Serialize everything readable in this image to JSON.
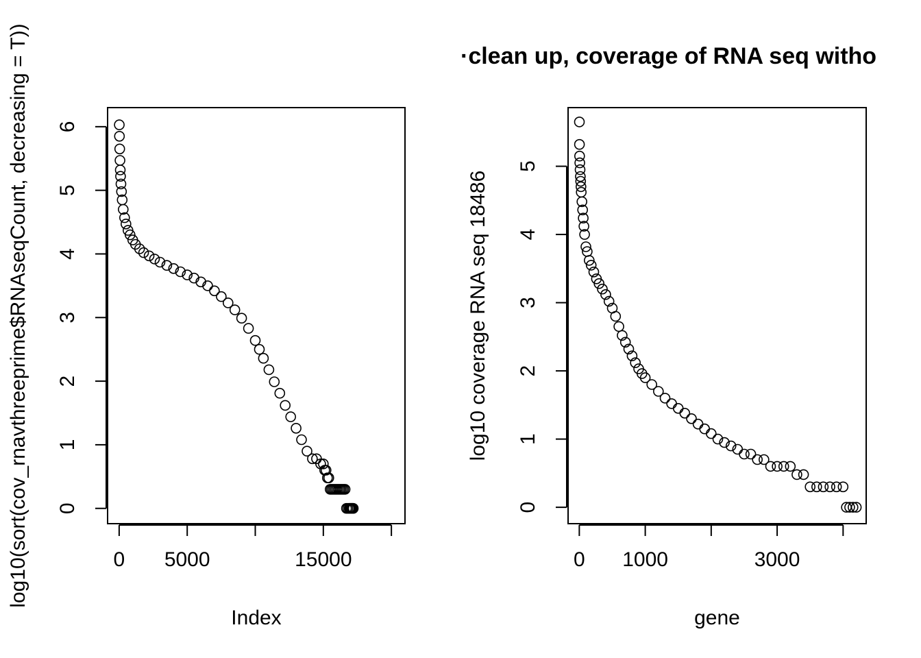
{
  "figure": {
    "title": "·clean up, coverage of RNA seq witho"
  },
  "chart_data": [
    {
      "type": "scatter",
      "title": "",
      "xlabel": "Index",
      "ylabel": "log10(sort(cov_rnavthreeprime$RNAseqCount, decreasing = T))",
      "xlim": [
        -850,
        21000
      ],
      "ylim": [
        -0.24,
        6.3
      ],
      "x_ticks": [
        0,
        5000,
        10000,
        15000,
        20000
      ],
      "x_tick_labels": [
        "0",
        "5000",
        "",
        "15000",
        ""
      ],
      "y_ticks": [
        0,
        1,
        2,
        3,
        4,
        5,
        6
      ],
      "y_tick_labels": [
        "0",
        "1",
        "2",
        "3",
        "4",
        "5",
        "6"
      ],
      "series": [
        {
          "x": [
            10,
            20,
            40,
            60,
            80,
            100,
            130,
            170,
            220,
            300,
            400,
            500,
            650,
            800,
            1000,
            1200,
            1500,
            1800,
            2200,
            2600,
            3000,
            3500,
            4000,
            4500,
            5000,
            5500,
            6000,
            6500,
            7000,
            7500,
            8000,
            8500,
            9000,
            9500,
            10000,
            10300,
            10600,
            11000,
            11400,
            11800,
            12200,
            12600,
            13000,
            13400,
            13800,
            14200,
            14500,
            14800,
            15000,
            15100,
            15200,
            15300,
            15400,
            15500,
            15600,
            15700,
            15800,
            15900,
            16000,
            16100,
            16200,
            16300,
            16400,
            16500,
            16600,
            16700,
            16800,
            16900,
            16950,
            17000,
            17050,
            17100,
            17150,
            17200
          ],
          "y": [
            6.03,
            5.85,
            5.65,
            5.47,
            5.32,
            5.22,
            5.1,
            4.98,
            4.85,
            4.7,
            4.57,
            4.47,
            4.37,
            4.3,
            4.22,
            4.15,
            4.08,
            4.02,
            3.97,
            3.92,
            3.87,
            3.82,
            3.77,
            3.72,
            3.67,
            3.62,
            3.56,
            3.5,
            3.42,
            3.33,
            3.23,
            3.12,
            2.99,
            2.83,
            2.64,
            2.5,
            2.36,
            2.18,
            1.99,
            1.81,
            1.62,
            1.44,
            1.26,
            1.08,
            0.9,
            0.78,
            0.78,
            0.7,
            0.7,
            0.6,
            0.6,
            0.48,
            0.48,
            0.3,
            0.3,
            0.3,
            0.3,
            0.3,
            0.3,
            0.3,
            0.3,
            0.3,
            0.3,
            0.3,
            0.3,
            0,
            0,
            0,
            0,
            0,
            0,
            0,
            0,
            0
          ]
        }
      ]
    },
    {
      "type": "scatter",
      "title": "",
      "xlabel": "gene",
      "ylabel": "log10 coverage RNA seq 18486",
      "xlim": [
        -170,
        4350
      ],
      "ylim": [
        -0.24,
        5.86
      ],
      "x_ticks": [
        0,
        1000,
        2000,
        3000,
        4000
      ],
      "x_tick_labels": [
        "0",
        "1000",
        "",
        "3000",
        ""
      ],
      "y_ticks": [
        0,
        1,
        2,
        3,
        4,
        5
      ],
      "y_tick_labels": [
        "0",
        "1",
        "2",
        "3",
        "4",
        "5"
      ],
      "series": [
        {
          "x": [
            1,
            3,
            5,
            8,
            12,
            16,
            20,
            25,
            30,
            40,
            50,
            60,
            70,
            80,
            100,
            120,
            150,
            180,
            220,
            260,
            300,
            350,
            400,
            450,
            500,
            550,
            600,
            650,
            700,
            750,
            800,
            850,
            900,
            950,
            1000,
            1100,
            1200,
            1300,
            1400,
            1500,
            1600,
            1700,
            1800,
            1900,
            2000,
            2100,
            2200,
            2300,
            2400,
            2500,
            2600,
            2700,
            2800,
            2900,
            3000,
            3100,
            3200,
            3300,
            3400,
            3500,
            3600,
            3700,
            3800,
            3900,
            4000,
            4050,
            4100,
            4150,
            4200
          ],
          "y": [
            5.65,
            5.32,
            5.15,
            5.05,
            4.95,
            4.85,
            4.78,
            4.7,
            4.62,
            4.48,
            4.36,
            4.24,
            4.12,
            4.0,
            3.82,
            3.75,
            3.62,
            3.55,
            3.45,
            3.35,
            3.28,
            3.2,
            3.12,
            3.02,
            2.92,
            2.8,
            2.65,
            2.52,
            2.42,
            2.32,
            2.22,
            2.12,
            2.03,
            1.96,
            1.9,
            1.8,
            1.7,
            1.6,
            1.52,
            1.45,
            1.38,
            1.3,
            1.22,
            1.15,
            1.08,
            1.0,
            0.95,
            0.9,
            0.85,
            0.78,
            0.78,
            0.7,
            0.7,
            0.6,
            0.6,
            0.6,
            0.6,
            0.48,
            0.48,
            0.3,
            0.3,
            0.3,
            0.3,
            0.3,
            0.3,
            0,
            0,
            0,
            0
          ]
        }
      ]
    }
  ]
}
